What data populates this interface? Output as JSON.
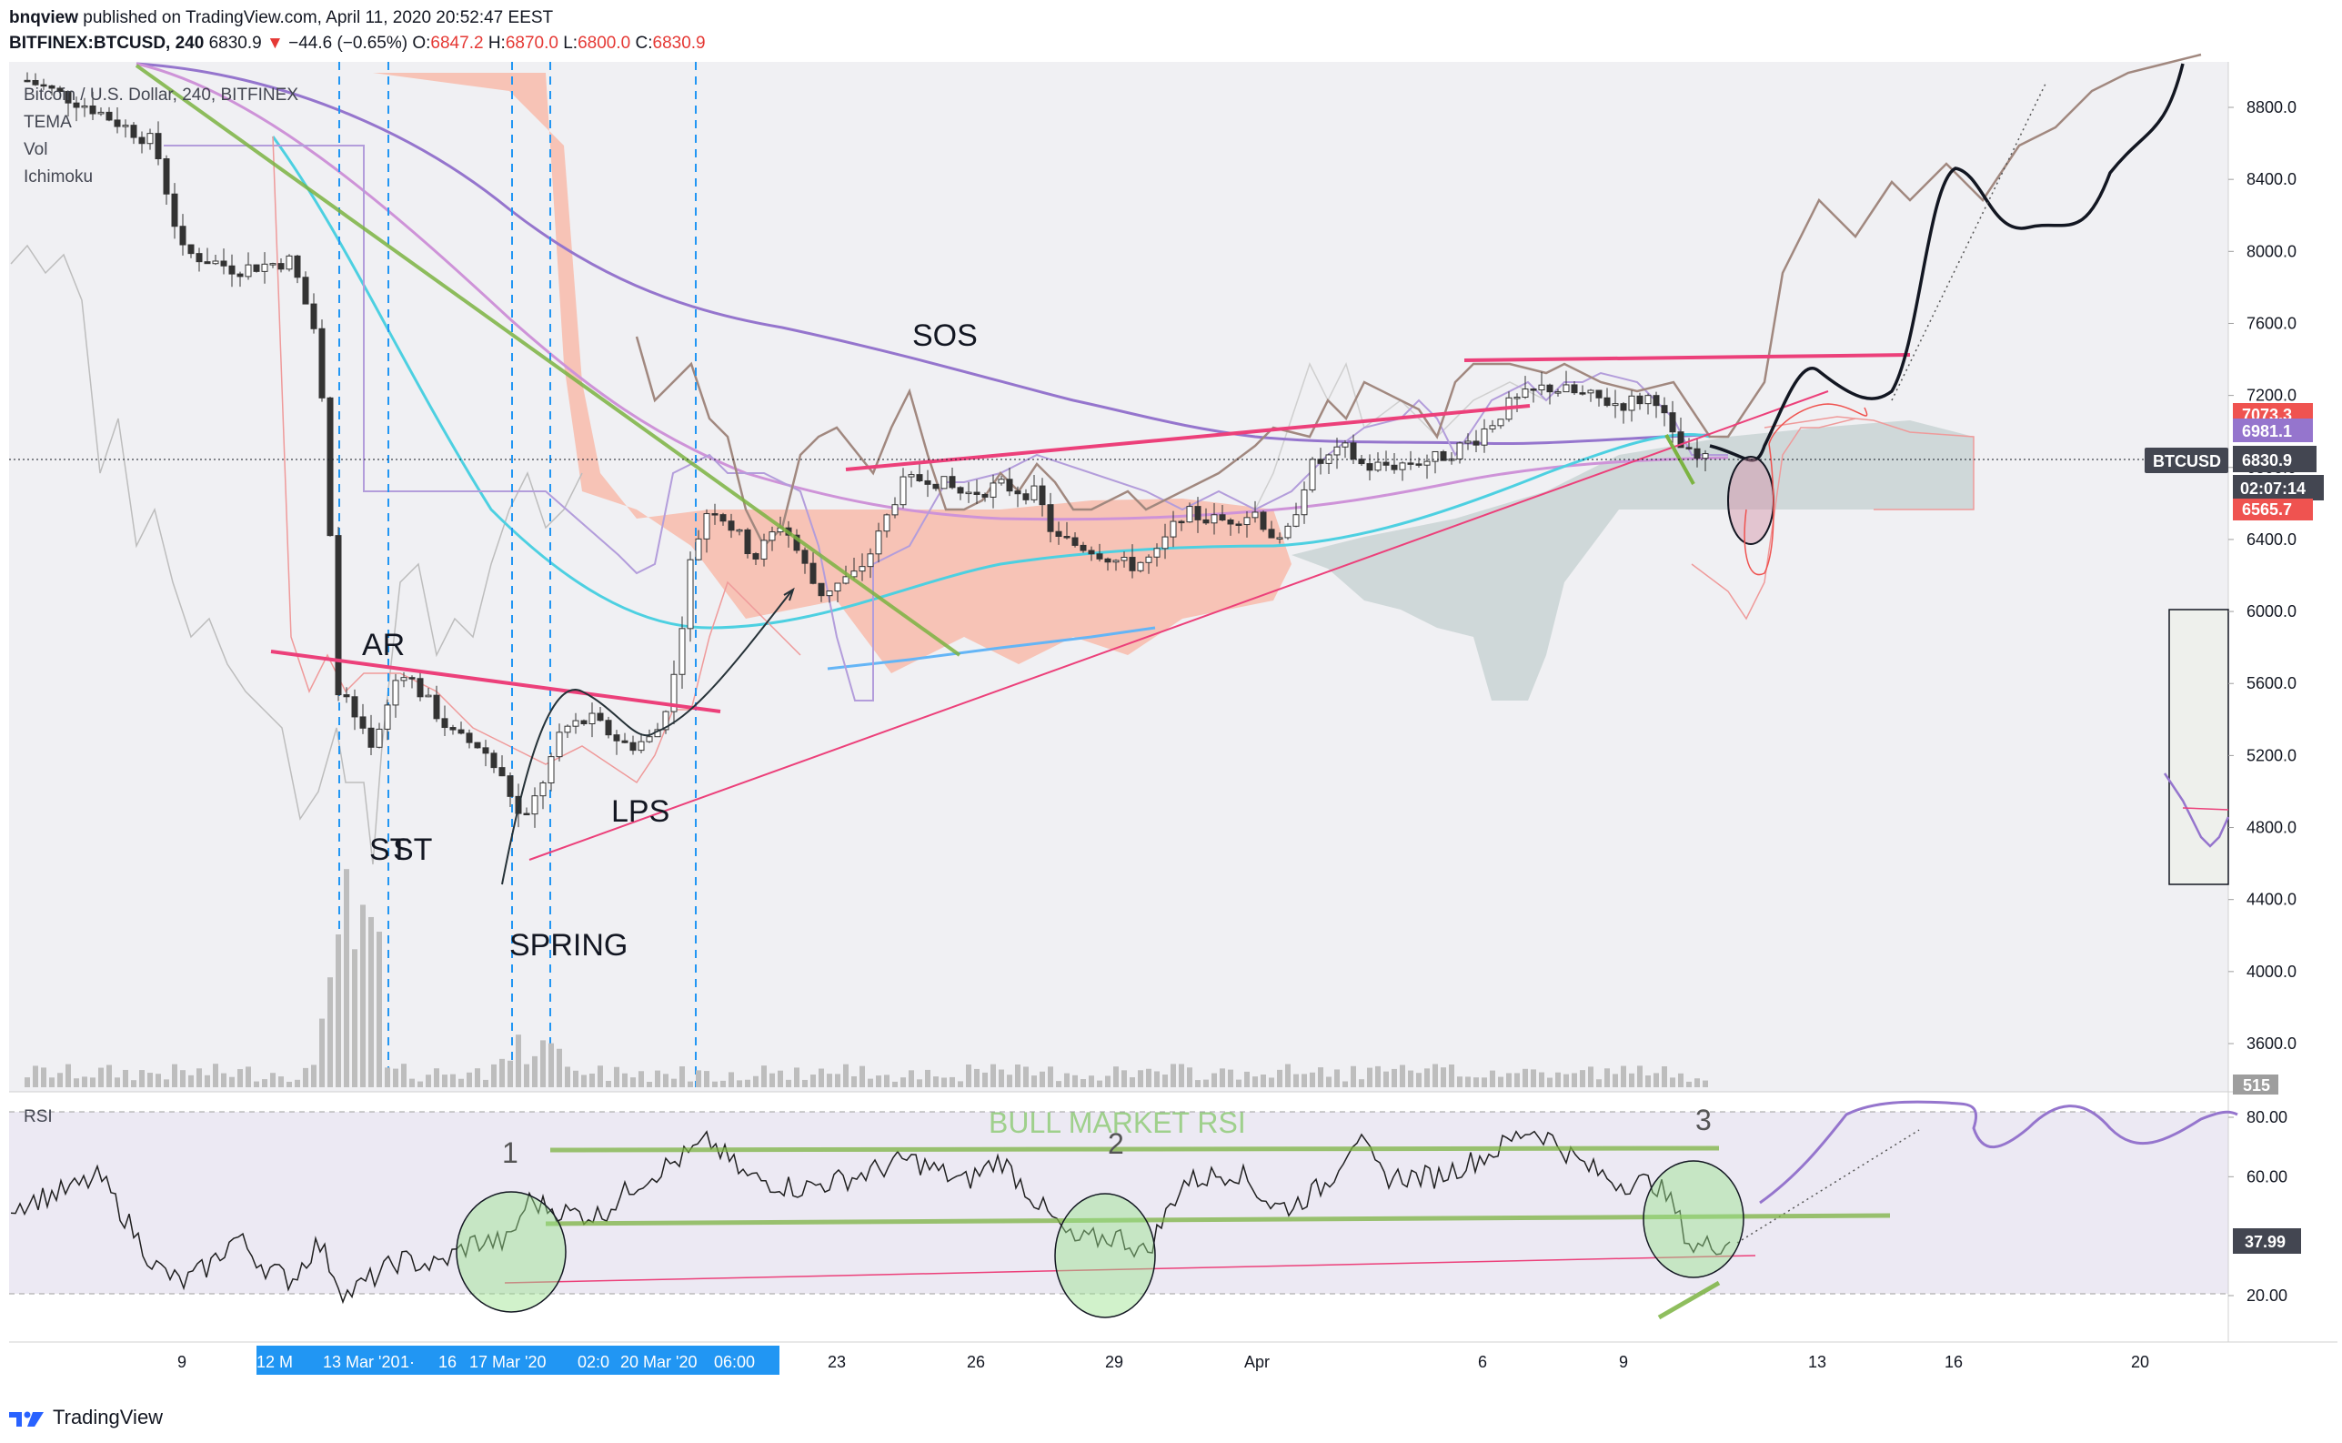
{
  "header": {
    "author": "bnqview",
    "published": "published on TradingView.com, April 11, 2020 20:52:47 EEST",
    "symbol": "BITFINEX:BTCUSD, 240",
    "last": "6830.9",
    "change_arrow": "▼",
    "change": "−44.6 (−0.65%)",
    "o_label": "O:",
    "o": "6847.2",
    "h_label": "H:",
    "h": "6870.0",
    "l_label": "L:",
    "l": "6800.0",
    "c_label": "C:",
    "c": "6830.9"
  },
  "legend": [
    "Bitcoin / U.S. Dollar, 240, BITFINEX",
    "TEMA",
    "Vol",
    "Ichimoku"
  ],
  "rsi_label": "RSI",
  "wyckoff_labels": {
    "ar": "AR",
    "st1": "ST",
    "st2": "ST",
    "spring": "SPRING",
    "lps": "LPS",
    "sos": "SOS",
    "bull": "BULL MARKET RSI",
    "n1": "1",
    "n2": "2",
    "n3": "3"
  },
  "price_tags": {
    "t7073": "7073.3",
    "t6981": "6981.1",
    "symbol": "BTCUSD",
    "last": "6830.9",
    "countdown": "02:07:14",
    "t6565": "6565.7",
    "vol": "515",
    "rsi": "37.99"
  },
  "colors": {
    "up": "#26a69a",
    "down": "#ef5350",
    "magenta": "#ec407a",
    "green_line": "#7cb342",
    "purple": "#9575cd",
    "cyan": "#4dd0e1",
    "cloud_red": "#f8bbaa",
    "cloud_grey": "#c9d4d4",
    "blue_tag": "#2196f3"
  },
  "footer": {
    "brand": "TradingView"
  },
  "chart_data": {
    "type": "candlestick",
    "title": "Bitcoin / U.S. Dollar, 240, BITFINEX",
    "y_axis_ticks": [
      "8800.0",
      "8400.0",
      "8000.0",
      "7600.0",
      "7200.0",
      "6800.0",
      "6400.0",
      "6000.0",
      "5600.0",
      "5200.0",
      "4800.0",
      "4400.0",
      "4000.0",
      "3600.0"
    ],
    "rsi_axis_ticks": [
      "80.00",
      "60.00",
      "20.00"
    ],
    "x_axis_ticks": [
      "9",
      "12 M",
      "13 Mar '20",
      "1·",
      "16",
      "17 Mar '20",
      "02:0",
      "20 Mar '20",
      "06:00",
      "23",
      "26",
      "29",
      "Apr",
      "6",
      "9",
      "13",
      "16",
      "20"
    ],
    "ylim": [
      3400,
      9000
    ],
    "rsi_ylim": [
      0,
      100
    ],
    "last_price": 6830.9,
    "rsi_value": 37.99
  }
}
